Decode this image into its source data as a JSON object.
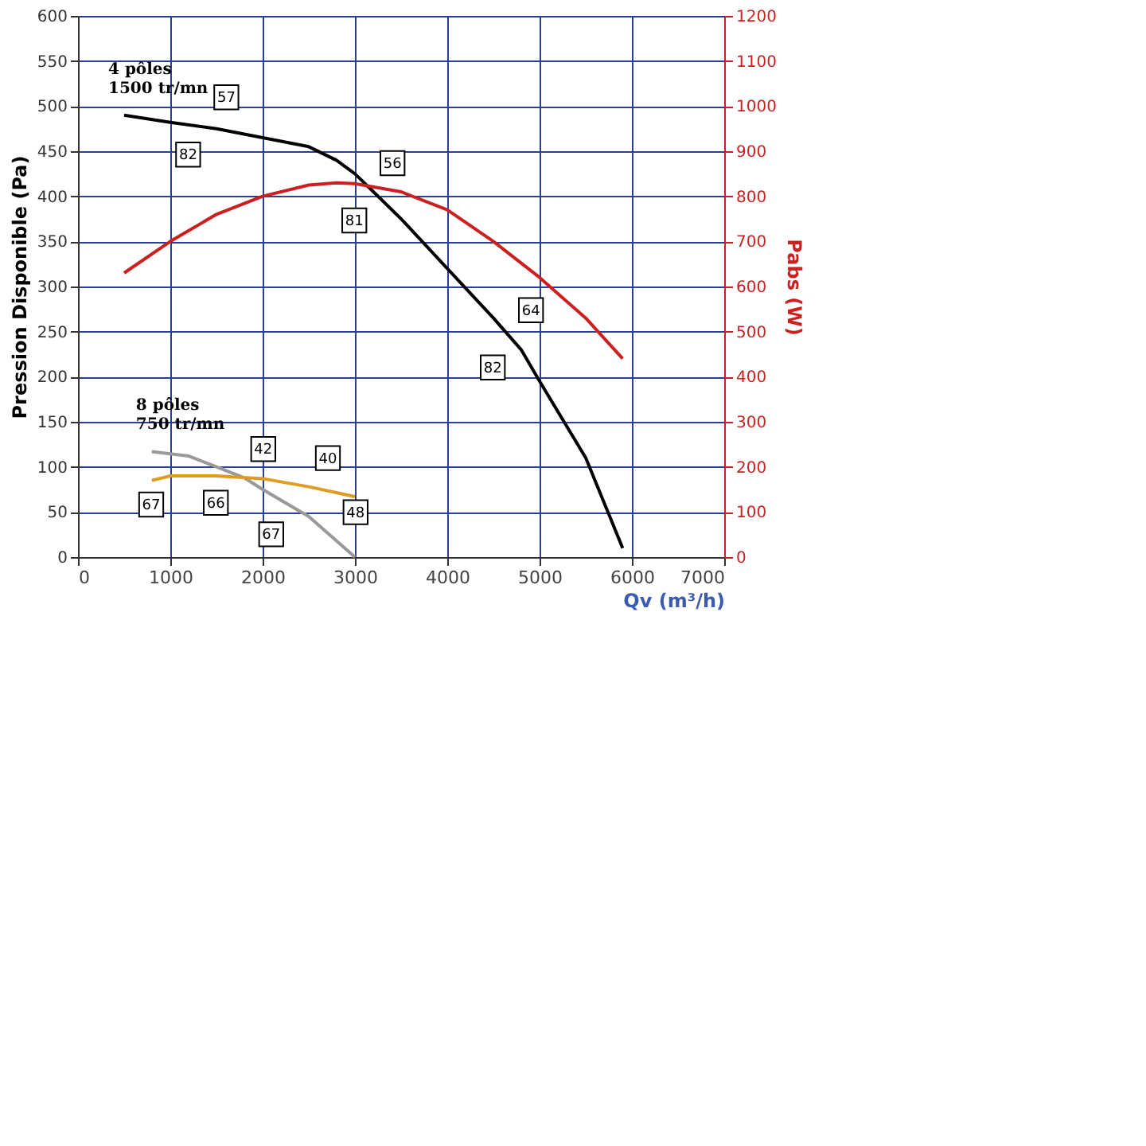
{
  "chart_data": {
    "type": "line",
    "xlabel": "Qv (m³/h)",
    "ylabel": "Pression Disponible (Pa)",
    "y2label": "Pabs (W)",
    "xlim": [
      0,
      7000
    ],
    "xticks": [
      0,
      1000,
      2000,
      3000,
      4000,
      5000,
      6000,
      7000
    ],
    "ylim": [
      0,
      600
    ],
    "yticks": [
      0,
      50,
      100,
      150,
      200,
      250,
      300,
      350,
      400,
      450,
      500,
      550,
      600
    ],
    "y2lim": [
      0,
      1200
    ],
    "y2ticks": [
      0,
      100,
      200,
      300,
      400,
      500,
      600,
      700,
      800,
      900,
      1000,
      1100,
      1200
    ],
    "grid": true,
    "marker": "none",
    "line_style": "solid",
    "series": [
      {
        "name": "4 pôles\n1500 tr/mn",
        "color": "#000000",
        "x": [
          500,
          1000,
          1500,
          2000,
          2500,
          2800,
          3000,
          3200,
          3500,
          4000,
          4500,
          4800,
          5000,
          5500,
          5900
        ],
        "values": [
          490,
          482,
          475,
          465,
          455,
          440,
          425,
          405,
          375,
          320,
          265,
          230,
          195,
          110,
          10
        ]
      },
      {
        "color": "#cc1f1f",
        "axis": "y2",
        "x": [
          500,
          1000,
          1500,
          2000,
          2500,
          2800,
          3000,
          3500,
          4000,
          4500,
          5000,
          5500,
          5900
        ],
        "values": [
          630,
          700,
          760,
          800,
          825,
          830,
          828,
          810,
          770,
          700,
          620,
          530,
          440
        ]
      },
      {
        "name": "8 pôles\n750 tr/mn",
        "color": "#999999",
        "x": [
          800,
          1200,
          1500,
          1800,
          2000,
          2500,
          3000
        ],
        "values": [
          117,
          112,
          100,
          88,
          75,
          45,
          0
        ]
      },
      {
        "color": "#e09a20",
        "axis": "y2",
        "x": [
          800,
          1000,
          1500,
          2000,
          2500,
          3000
        ],
        "values": [
          170,
          180,
          180,
          174,
          156,
          134
        ]
      }
    ],
    "annotations": [
      {
        "text": "57",
        "x": 1400,
        "y": 478
      },
      {
        "text": "82",
        "x": 1400,
        "y": 478
      },
      {
        "text": "56",
        "x": 3200,
        "y": 405
      },
      {
        "text": "81",
        "x": 3200,
        "y": 405
      },
      {
        "text": "64",
        "x": 4700,
        "y": 242
      },
      {
        "text": "82",
        "x": 4700,
        "y": 242
      },
      {
        "text": "42",
        "x": 1800,
        "y": 88
      },
      {
        "text": "67",
        "x": 1000,
        "y": 90
      },
      {
        "text": "40",
        "x": 2500,
        "y": 78
      },
      {
        "text": "66",
        "x": 1700,
        "y": 92
      },
      {
        "text": "48",
        "x": 2800,
        "y": 18
      },
      {
        "text": "67",
        "x": 2300,
        "y": 57
      }
    ]
  }
}
